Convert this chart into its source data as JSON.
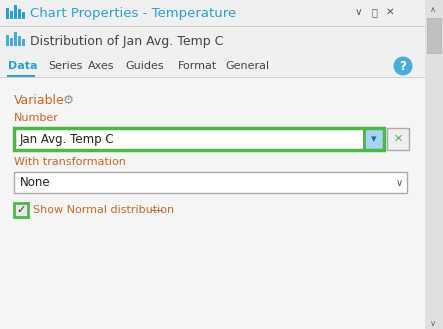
{
  "title": "Chart Properties - Temperature",
  "title_color": "#2b9fd4",
  "subtitle": "Distribution of Jan Avg. Temp C",
  "subtitle_color": "#444444",
  "tabs": [
    "Data",
    "Series",
    "Axes",
    "Guides",
    "Format",
    "General"
  ],
  "active_tab": "Data",
  "active_tab_color": "#2b9fd4",
  "inactive_tab_color": "#444444",
  "section_label": "Variable",
  "field_label_number": "Number",
  "field_value": "Jan Avg. Temp C",
  "field_label_transform": "With transformation",
  "transform_value": "None",
  "checkbox_label": "Show Normal distribution",
  "bg_color": "#f0f0f0",
  "content_bg": "#f5f5f5",
  "white": "#ffffff",
  "green_border": "#4db848",
  "blue_dropdown": "#a8d4f0",
  "label_color": "#c8682a",
  "gear_color": "#909090",
  "scrollbar_bg": "#e0e0e0",
  "scrollbar_thumb": "#c0c0c0",
  "title_bar_bg": "#f0f0f0",
  "subtitle_bar_bg": "#f0f0f0",
  "tab_bar_bg": "#f0f0f0",
  "divider_color": "#d0d0d0",
  "text_dark": "#222222",
  "x_btn_color": "#4db848",
  "question_circle_color": "#4aacda",
  "none_dropdown_border": "#aaaaaa",
  "checkbox_bg": "#e8e8e8"
}
